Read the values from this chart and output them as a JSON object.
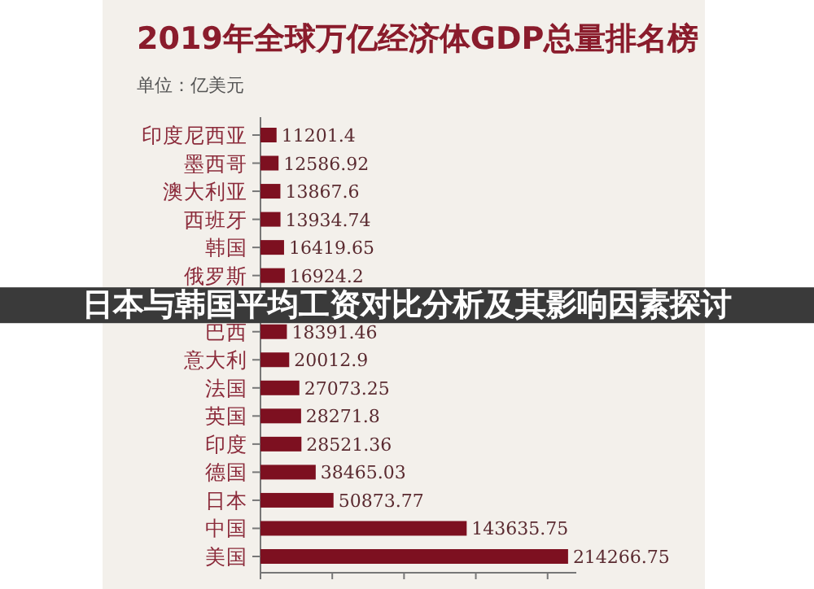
{
  "chart_data": {
    "type": "bar",
    "orientation": "horizontal",
    "title": "2019年全球万亿经济体GDP总量排名榜",
    "subtitle": "单位：亿美元",
    "annotations": [
      "日本与韩国平均工资对比分析及其影响因素探讨"
    ],
    "categories": [
      "印度尼西亚",
      "墨西哥",
      "澳大利亚",
      "西班牙",
      "韩国",
      "俄罗斯",
      null,
      "巴西",
      "意大利",
      "法国",
      "英国",
      "印度",
      "德国",
      "日本",
      "中国",
      "美国"
    ],
    "values": [
      11201.4,
      12586.92,
      13867.6,
      13934.74,
      16419.65,
      16924.2,
      null,
      18391.46,
      20012.9,
      27073.25,
      28271.8,
      28521.36,
      38465.03,
      50873.77,
      143635.75,
      214266.75
    ],
    "data_labels": true,
    "color": "#7d1020",
    "xlim": [
      0,
      220000
    ],
    "xticks": [
      {
        "value": 0,
        "label": null
      },
      {
        "value": 50000,
        "label": null
      },
      {
        "value": 100000,
        "label": null
      },
      {
        "value": 150000,
        "label": null
      },
      {
        "value": 200000,
        "label": null
      }
    ],
    "tick_labels": "y"
  }
}
